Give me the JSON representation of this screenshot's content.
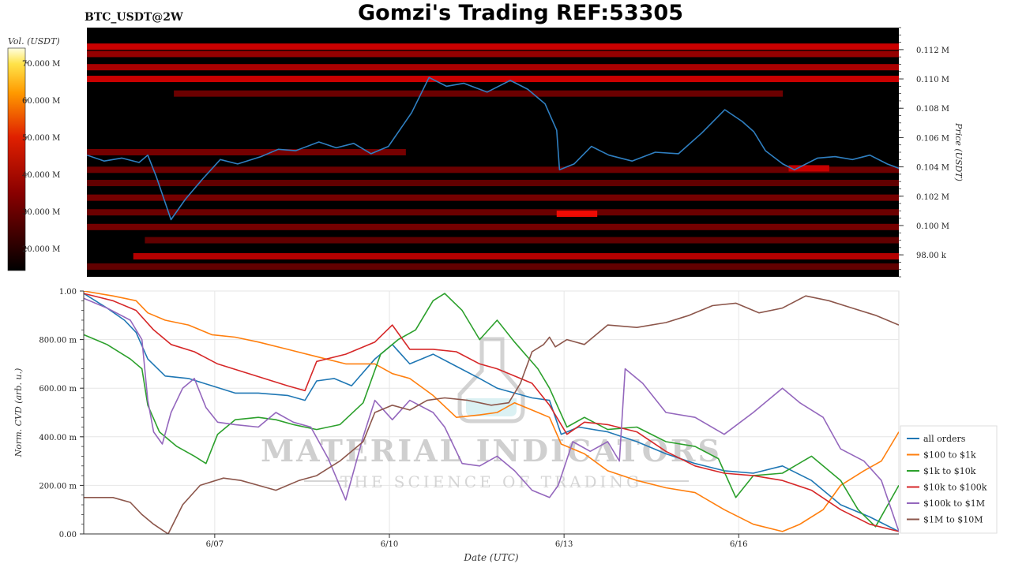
{
  "header": {
    "symbol": "BTC_USDT@2W",
    "title": "Gomzi's Trading REF:53305"
  },
  "watermark": {
    "line1": "MATERIAL INDICATORS",
    "line2": "THE SCIENCE OF TRADING"
  },
  "colors": {
    "heatmap_background": "#000000",
    "price_line": "#2f7fc1",
    "series": [
      "#1f77b4",
      "#ff7f0e",
      "#2ca02c",
      "#d62728",
      "#9467bd",
      "#8c564b"
    ]
  },
  "chart_data": [
    {
      "type": "heatmap",
      "name": "Order book liquidity heatmap",
      "colorbar": {
        "label": "Vol. (USDT)",
        "ticks": [
          "20.000 M",
          "30.000 M",
          "40.000 M",
          "50.000 M",
          "60.000 M",
          "70.000 M"
        ],
        "tick_values": [
          20,
          30,
          40,
          50,
          60,
          70
        ],
        "range": [
          14,
          74
        ],
        "colormap": "black-red-yellow-white"
      },
      "ylabel": "Price (USDT)",
      "y_ticks": [
        "98.00 k",
        "0.100 M",
        "0.102 M",
        "0.104 M",
        "0.106 M",
        "0.108 M",
        "0.110 M",
        "0.112 M"
      ],
      "y_tick_values": [
        98000,
        100000,
        102000,
        104000,
        106000,
        108000,
        110000,
        112000
      ],
      "ylim": [
        96500,
        113500
      ],
      "xlim": [
        0,
        14
      ],
      "liquidity_bands": [
        {
          "price": 112200,
          "x": [
            0,
            14
          ],
          "intensity": 0.7
        },
        {
          "price": 111700,
          "x": [
            0,
            14
          ],
          "intensity": 0.45
        },
        {
          "price": 110800,
          "x": [
            0,
            14
          ],
          "intensity": 0.55
        },
        {
          "price": 110000,
          "x": [
            0,
            14
          ],
          "intensity": 0.7
        },
        {
          "price": 109000,
          "x": [
            1.5,
            12
          ],
          "intensity": 0.25
        },
        {
          "price": 105000,
          "x": [
            0,
            5.5
          ],
          "intensity": 0.3
        },
        {
          "price": 103800,
          "x": [
            0,
            14
          ],
          "intensity": 0.25
        },
        {
          "price": 103900,
          "x": [
            12.1,
            12.8
          ],
          "intensity": 0.65
        },
        {
          "price": 102900,
          "x": [
            0,
            14
          ],
          "intensity": 0.2
        },
        {
          "price": 101900,
          "x": [
            0,
            14
          ],
          "intensity": 0.3
        },
        {
          "price": 100900,
          "x": [
            0,
            14
          ],
          "intensity": 0.25
        },
        {
          "price": 100800,
          "x": [
            8.1,
            8.8
          ],
          "intensity": 0.85
        },
        {
          "price": 99900,
          "x": [
            0,
            14
          ],
          "intensity": 0.3
        },
        {
          "price": 99000,
          "x": [
            1,
            14
          ],
          "intensity": 0.2
        },
        {
          "price": 97900,
          "x": [
            0.8,
            14
          ],
          "intensity": 0.6
        },
        {
          "price": 97200,
          "x": [
            0,
            14
          ],
          "intensity": 0.2
        }
      ],
      "price_series": {
        "name": "BTC price",
        "x": [
          0,
          0.3,
          0.6,
          0.9,
          1.05,
          1.2,
          1.45,
          1.7,
          2.0,
          2.3,
          2.6,
          3.0,
          3.3,
          3.6,
          4.0,
          4.3,
          4.6,
          4.9,
          5.2,
          5.6,
          5.9,
          6.2,
          6.5,
          6.9,
          7.3,
          7.6,
          7.9,
          8.1,
          8.15,
          8.4,
          8.7,
          9.0,
          9.4,
          9.8,
          10.2,
          10.6,
          11.0,
          11.3,
          11.5,
          11.7,
          12.0,
          12.2,
          12.6,
          12.9,
          13.2,
          13.5,
          13.8,
          14.0
        ],
        "values": [
          104800,
          104400,
          104600,
          104300,
          104800,
          103300,
          100400,
          101800,
          103200,
          104500,
          104200,
          104700,
          105200,
          105100,
          105700,
          105300,
          105600,
          104900,
          105400,
          107700,
          110100,
          109500,
          109700,
          109100,
          109900,
          109300,
          108300,
          106500,
          103800,
          104200,
          105400,
          104800,
          104400,
          105000,
          104900,
          106300,
          107900,
          107100,
          106400,
          105100,
          104200,
          103800,
          104600,
          104700,
          104500,
          104800,
          104200,
          103900
        ]
      }
    },
    {
      "type": "line",
      "name": "Normalized CVD by order size",
      "xlabel": "Date (UTC)",
      "ylabel": "Norm. CVD (arb. u.)",
      "ylim": [
        0,
        1
      ],
      "xlim": [
        0,
        14
      ],
      "x_ticks": [
        "6/07",
        "6/10",
        "6/13",
        "6/16"
      ],
      "x_tick_values": [
        2.25,
        5.25,
        8.25,
        11.25
      ],
      "y_ticks": [
        "0.00",
        "200.00 m",
        "400.00 m",
        "600.00 m",
        "800.00 m",
        "1.00"
      ],
      "y_tick_values": [
        0,
        0.2,
        0.4,
        0.6,
        0.8,
        1.0
      ],
      "legend_position": "right",
      "series": [
        {
          "name": "all orders",
          "x": [
            0,
            0.4,
            0.7,
            0.9,
            1.1,
            1.4,
            1.8,
            2.2,
            2.6,
            3.0,
            3.5,
            3.8,
            4.0,
            4.3,
            4.6,
            5.0,
            5.3,
            5.6,
            6.0,
            6.4,
            6.8,
            7.1,
            7.4,
            7.7,
            8.0,
            8.2,
            8.5,
            9.0,
            9.5,
            10.0,
            10.5,
            11.0,
            11.5,
            12.0,
            12.5,
            13.0,
            13.5,
            14.0
          ],
          "values": [
            0.99,
            0.93,
            0.88,
            0.83,
            0.72,
            0.65,
            0.64,
            0.61,
            0.58,
            0.58,
            0.57,
            0.55,
            0.63,
            0.64,
            0.61,
            0.72,
            0.78,
            0.7,
            0.74,
            0.69,
            0.64,
            0.6,
            0.58,
            0.56,
            0.55,
            0.41,
            0.44,
            0.42,
            0.38,
            0.33,
            0.29,
            0.26,
            0.25,
            0.28,
            0.22,
            0.12,
            0.07,
            0.01
          ]
        },
        {
          "name": "$100 to $1k",
          "x": [
            0,
            0.5,
            0.9,
            1.1,
            1.4,
            1.8,
            2.2,
            2.6,
            3.0,
            3.5,
            4.0,
            4.5,
            5.0,
            5.3,
            5.6,
            6.0,
            6.4,
            6.8,
            7.1,
            7.4,
            7.8,
            8.0,
            8.2,
            8.6,
            9.0,
            9.5,
            10.0,
            10.5,
            11.0,
            11.5,
            12.0,
            12.3,
            12.7,
            13.0,
            13.4,
            13.7,
            14.0
          ],
          "values": [
            1.0,
            0.98,
            0.96,
            0.91,
            0.88,
            0.86,
            0.82,
            0.81,
            0.79,
            0.76,
            0.73,
            0.7,
            0.7,
            0.66,
            0.64,
            0.57,
            0.48,
            0.49,
            0.5,
            0.54,
            0.5,
            0.48,
            0.37,
            0.33,
            0.26,
            0.22,
            0.19,
            0.17,
            0.1,
            0.04,
            0.01,
            0.04,
            0.1,
            0.2,
            0.26,
            0.3,
            0.42
          ]
        },
        {
          "name": "$1k to $10k",
          "x": [
            0,
            0.4,
            0.8,
            1.0,
            1.1,
            1.3,
            1.6,
            1.9,
            2.1,
            2.3,
            2.6,
            3.0,
            3.3,
            3.6,
            4.0,
            4.4,
            4.8,
            5.1,
            5.4,
            5.7,
            6.0,
            6.2,
            6.5,
            6.8,
            7.1,
            7.4,
            7.8,
            8.0,
            8.3,
            8.6,
            9.0,
            9.5,
            10.0,
            10.5,
            10.9,
            11.2,
            11.5,
            12.0,
            12.5,
            13.0,
            13.3,
            13.6,
            14.0
          ],
          "values": [
            0.82,
            0.78,
            0.72,
            0.68,
            0.53,
            0.42,
            0.36,
            0.32,
            0.29,
            0.41,
            0.47,
            0.48,
            0.47,
            0.45,
            0.43,
            0.45,
            0.54,
            0.74,
            0.8,
            0.84,
            0.96,
            0.99,
            0.92,
            0.8,
            0.88,
            0.79,
            0.68,
            0.6,
            0.44,
            0.48,
            0.43,
            0.44,
            0.38,
            0.36,
            0.31,
            0.15,
            0.24,
            0.25,
            0.32,
            0.22,
            0.1,
            0.03,
            0.2
          ]
        },
        {
          "name": "$10k to $100k",
          "x": [
            0,
            0.5,
            0.9,
            1.2,
            1.5,
            1.9,
            2.3,
            2.7,
            3.1,
            3.5,
            3.8,
            4.0,
            4.5,
            5.0,
            5.3,
            5.6,
            6.0,
            6.4,
            6.8,
            7.1,
            7.4,
            7.7,
            8.0,
            8.3,
            8.6,
            9.0,
            9.5,
            10.0,
            10.5,
            11.0,
            11.5,
            12.0,
            12.5,
            13.0,
            13.5,
            14.0
          ],
          "values": [
            0.99,
            0.96,
            0.92,
            0.84,
            0.78,
            0.75,
            0.7,
            0.67,
            0.64,
            0.61,
            0.59,
            0.71,
            0.74,
            0.79,
            0.86,
            0.76,
            0.76,
            0.75,
            0.7,
            0.68,
            0.65,
            0.62,
            0.53,
            0.41,
            0.46,
            0.45,
            0.42,
            0.34,
            0.28,
            0.25,
            0.24,
            0.22,
            0.18,
            0.1,
            0.04,
            0.01
          ]
        },
        {
          "name": "$100k to $1M",
          "x": [
            0,
            0.4,
            0.8,
            1.0,
            1.1,
            1.2,
            1.35,
            1.5,
            1.7,
            1.9,
            2.1,
            2.3,
            2.6,
            3.0,
            3.3,
            3.6,
            3.9,
            4.2,
            4.5,
            4.8,
            5.0,
            5.3,
            5.6,
            6.0,
            6.2,
            6.5,
            6.8,
            7.1,
            7.4,
            7.7,
            8.0,
            8.15,
            8.4,
            8.7,
            9.0,
            9.2,
            9.3,
            9.6,
            10.0,
            10.5,
            11.0,
            11.5,
            12.0,
            12.3,
            12.7,
            13.0,
            13.4,
            13.7,
            14.0
          ],
          "values": [
            0.97,
            0.93,
            0.88,
            0.8,
            0.55,
            0.42,
            0.37,
            0.5,
            0.6,
            0.64,
            0.52,
            0.46,
            0.45,
            0.44,
            0.5,
            0.46,
            0.44,
            0.31,
            0.14,
            0.4,
            0.55,
            0.47,
            0.55,
            0.5,
            0.44,
            0.29,
            0.28,
            0.32,
            0.26,
            0.18,
            0.15,
            0.2,
            0.38,
            0.34,
            0.38,
            0.3,
            0.68,
            0.62,
            0.5,
            0.48,
            0.41,
            0.5,
            0.6,
            0.54,
            0.48,
            0.35,
            0.3,
            0.22,
            0.01
          ]
        },
        {
          "name": "$1M to $10M",
          "x": [
            0,
            0.5,
            0.8,
            1.0,
            1.2,
            1.45,
            1.7,
            2.0,
            2.4,
            2.7,
            3.0,
            3.3,
            3.7,
            4.0,
            4.4,
            4.8,
            5.0,
            5.3,
            5.6,
            5.9,
            6.2,
            6.6,
            7.0,
            7.3,
            7.5,
            7.7,
            7.9,
            8.0,
            8.1,
            8.3,
            8.6,
            9.0,
            9.5,
            10.0,
            10.4,
            10.8,
            11.2,
            11.6,
            12.0,
            12.4,
            12.8,
            13.2,
            13.6,
            14.0
          ],
          "values": [
            0.15,
            0.15,
            0.13,
            0.08,
            0.04,
            0.0,
            0.12,
            0.2,
            0.23,
            0.22,
            0.2,
            0.18,
            0.22,
            0.24,
            0.3,
            0.38,
            0.5,
            0.53,
            0.51,
            0.55,
            0.56,
            0.55,
            0.53,
            0.54,
            0.62,
            0.75,
            0.78,
            0.81,
            0.77,
            0.8,
            0.78,
            0.86,
            0.85,
            0.87,
            0.9,
            0.94,
            0.95,
            0.91,
            0.93,
            0.98,
            0.96,
            0.93,
            0.9,
            0.86
          ]
        }
      ]
    }
  ]
}
